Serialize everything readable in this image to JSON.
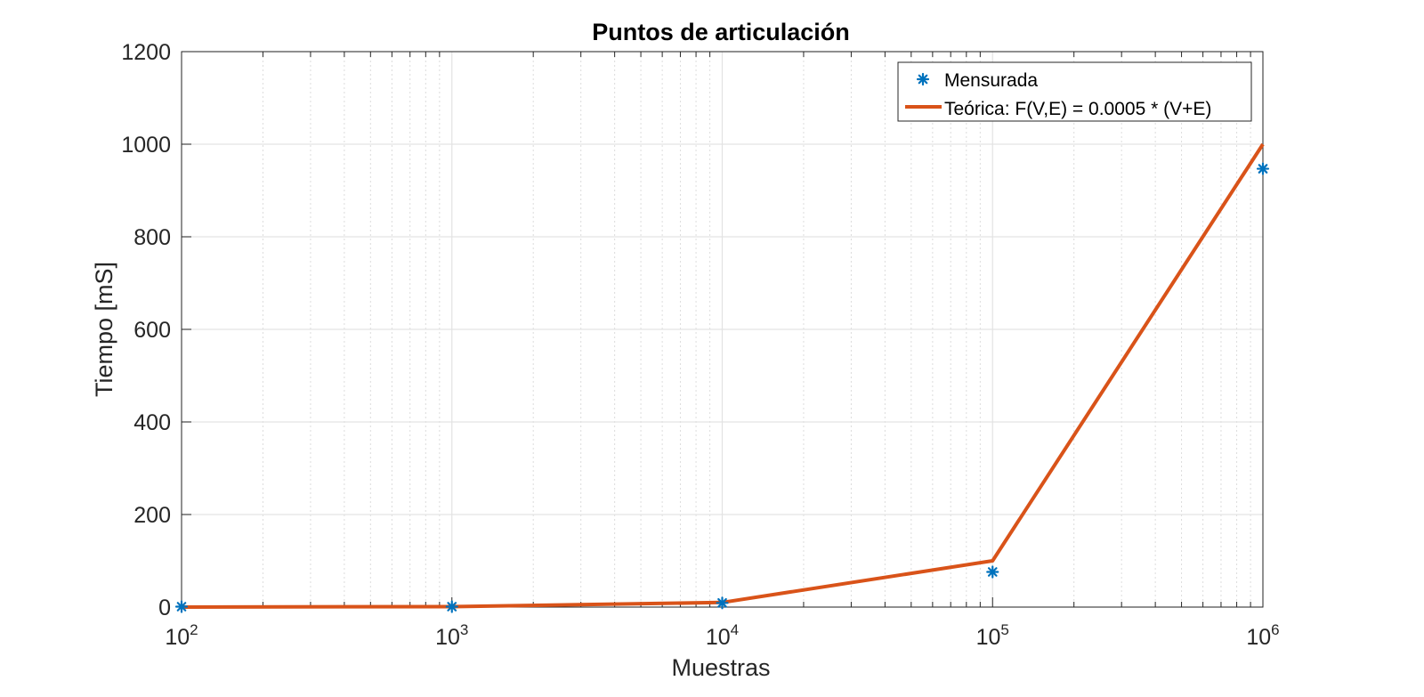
{
  "chart_data": {
    "type": "line",
    "title": "Puntos de articulación",
    "xlabel": "Muestras",
    "ylabel": "Tiempo [mS]",
    "xscale": "log",
    "xlim": [
      100,
      1000000
    ],
    "ylim": [
      0,
      1200
    ],
    "xticks": [
      {
        "value": 100,
        "base": "10",
        "exp": "2"
      },
      {
        "value": 1000,
        "base": "10",
        "exp": "3"
      },
      {
        "value": 10000,
        "base": "10",
        "exp": "4"
      },
      {
        "value": 100000,
        "base": "10",
        "exp": "5"
      },
      {
        "value": 1000000,
        "base": "10",
        "exp": "6"
      }
    ],
    "yticks": [
      0,
      200,
      400,
      600,
      800,
      1000,
      1200
    ],
    "grid": true,
    "minor_grid_x": true,
    "legend_position": "top-right",
    "series": [
      {
        "name": "Mensurada",
        "style": "markers",
        "marker": "asterisk",
        "color": "#0072BD",
        "x": [
          100,
          1000,
          10000,
          100000,
          1000000
        ],
        "y": [
          1,
          1,
          9,
          76,
          947
        ]
      },
      {
        "name": "Teórica: F(V,E) = 0.0005 * (V+E)",
        "style": "line",
        "color": "#D95319",
        "x": [
          100,
          1000,
          10000,
          100000,
          1000000
        ],
        "y": [
          0.1,
          1,
          10,
          100,
          1000
        ]
      }
    ]
  }
}
